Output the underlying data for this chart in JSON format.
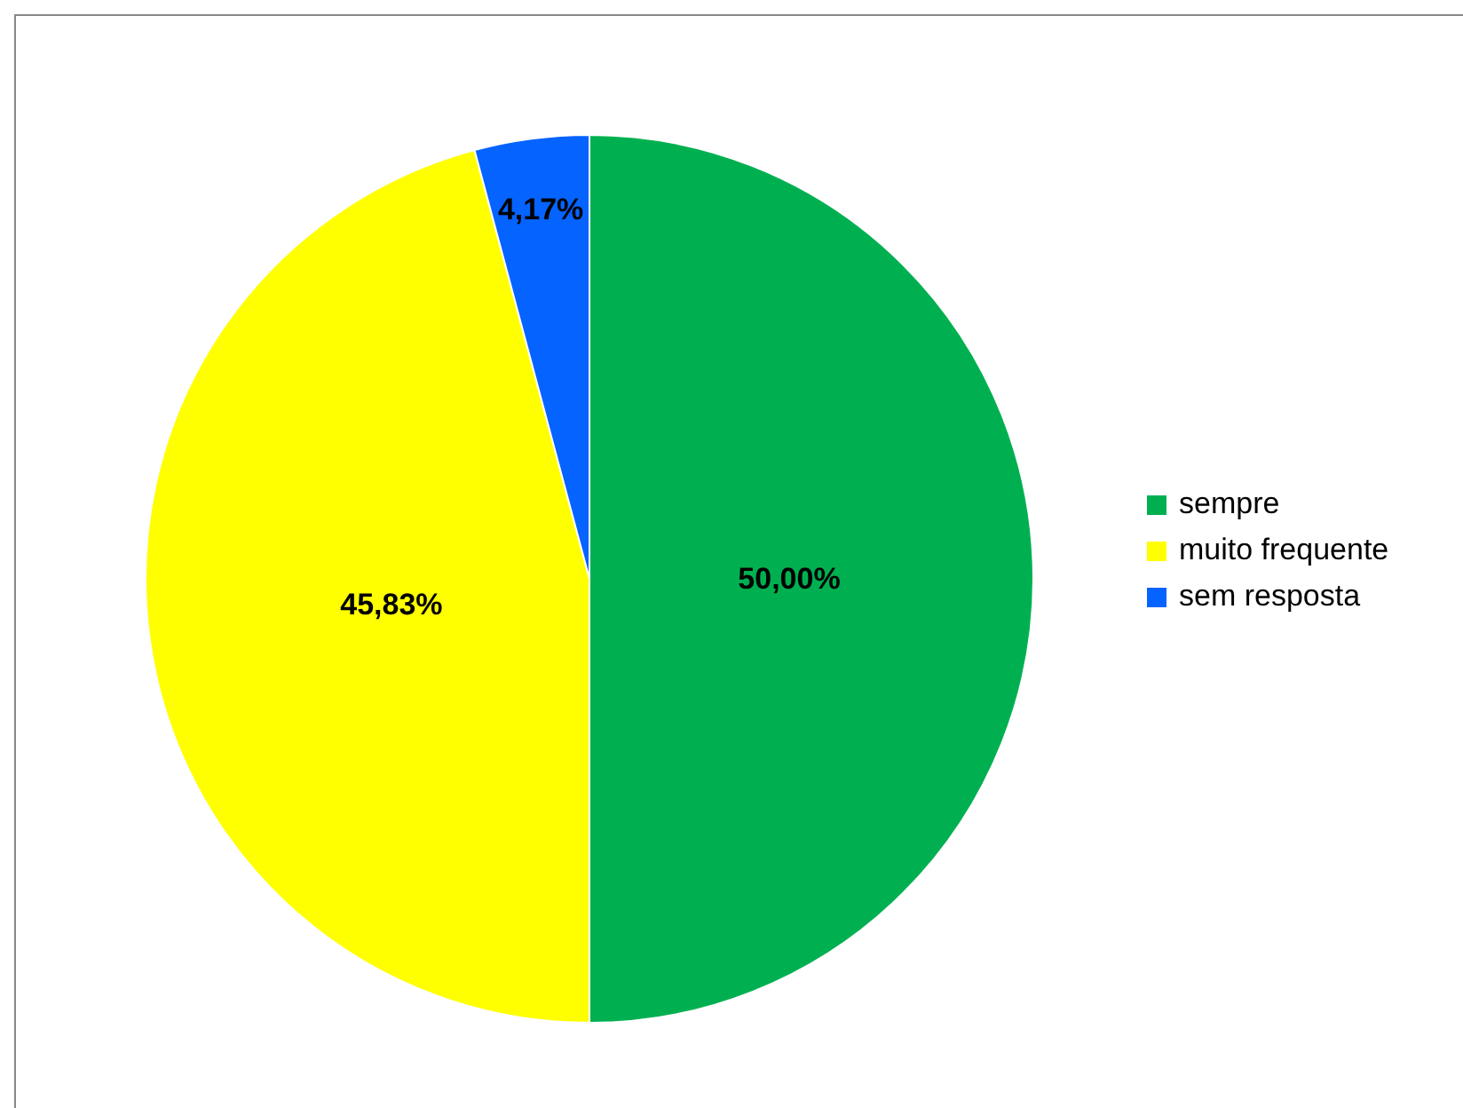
{
  "chart_data": {
    "type": "pie",
    "categories": [
      "sempre",
      "muito frequente",
      "sem resposta"
    ],
    "values": [
      50.0,
      45.83,
      4.17
    ],
    "colors": [
      "#00b050",
      "#ffff00",
      "#0563ff"
    ],
    "value_labels": [
      "50,00%",
      "45,83%",
      "4,17%"
    ],
    "legend": "right"
  }
}
